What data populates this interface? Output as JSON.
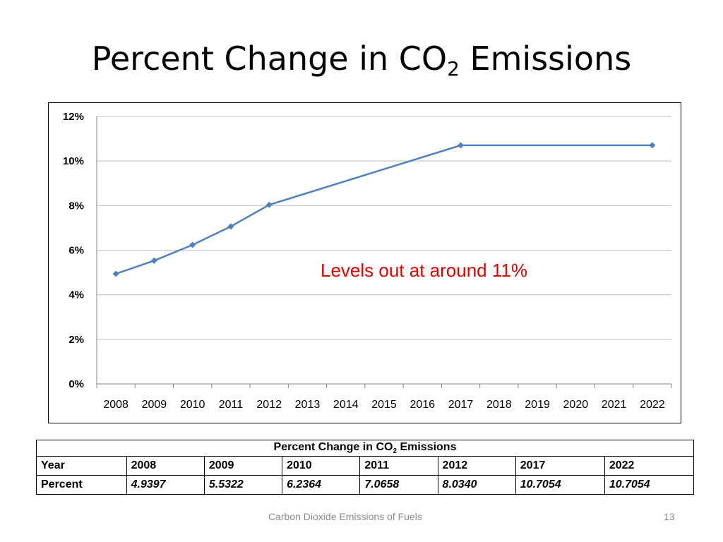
{
  "slide": {
    "title_pre": "Percent Change in CO",
    "title_sub": "2",
    "title_post": " Emissions",
    "annotation": "Levels out at around 11%",
    "footer": "Carbon Dioxide Emissions of Fuels",
    "page_number": "13"
  },
  "table": {
    "caption_pre": "Percent Change in CO",
    "caption_sub": "2",
    "caption_post": " Emissions",
    "year_label": "Year",
    "percent_label": "Percent",
    "years": [
      "2008",
      "2009",
      "2010",
      "2011",
      "2012",
      "2017",
      "2022"
    ],
    "percents": [
      "4.9397",
      "5.5322",
      "6.2364",
      "7.0658",
      "8.0340",
      "10.7054",
      "10.7054"
    ]
  },
  "chart_data": {
    "type": "line",
    "title": "",
    "xlabel": "",
    "ylabel": "",
    "categories": [
      "2008",
      "2009",
      "2010",
      "2011",
      "2012",
      "2013",
      "2014",
      "2015",
      "2016",
      "2017",
      "2018",
      "2019",
      "2020",
      "2021",
      "2022"
    ],
    "y_tick_labels": [
      "0%",
      "2%",
      "4%",
      "6%",
      "8%",
      "10%",
      "12%"
    ],
    "ylim": [
      0,
      12
    ],
    "grid": true,
    "legend": "none",
    "series": [
      {
        "points": [
          {
            "x": "2008",
            "y": 4.9397
          },
          {
            "x": "2009",
            "y": 5.5322
          },
          {
            "x": "2010",
            "y": 6.2364
          },
          {
            "x": "2011",
            "y": 7.0658
          },
          {
            "x": "2012",
            "y": 8.034
          },
          {
            "x": "2017",
            "y": 10.7054
          },
          {
            "x": "2022",
            "y": 10.7054
          }
        ],
        "color": "#4f81bd"
      }
    ]
  }
}
